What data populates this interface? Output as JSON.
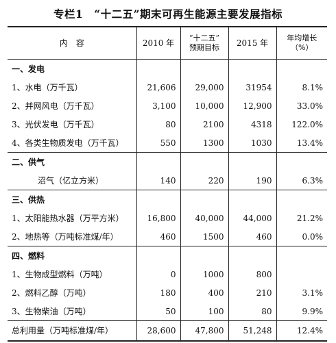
{
  "title": "专栏1　“十二五”期末可再生能源主要发展指标",
  "header": {
    "item": "内　容",
    "y2010": "2010 年",
    "target_line1": "“十二五”",
    "target_line2": "预期目标",
    "y2015": "2015 年",
    "growth_line1": "年均增长",
    "growth_line2": "（%）"
  },
  "sections": [
    {
      "heading": "一、发电",
      "rows": [
        {
          "label": "1、水电（万千瓦）",
          "y2010": "21,606",
          "target": "29,000",
          "y2015": "31954",
          "growth": "8.1%"
        },
        {
          "label": "2、并网风电（万千瓦）",
          "y2010": "3,100",
          "target": "10,000",
          "y2015": "12,900",
          "growth": "33.0%"
        },
        {
          "label": "3、光伏发电（万千瓦）",
          "y2010": "80",
          "target": "2100",
          "y2015": "4318",
          "growth": "122.0%"
        },
        {
          "label": "4、各类生物质发电（万千瓦）",
          "y2010": "550",
          "target": "1300",
          "y2015": "1030",
          "growth": "13.4%"
        }
      ]
    },
    {
      "heading": "二、供气",
      "rows": [
        {
          "label": "沼气（亿立方米）",
          "y2010": "140",
          "target": "220",
          "y2015": "190",
          "growth": "6.3%"
        }
      ]
    },
    {
      "heading": "三、供热",
      "rows": [
        {
          "label": "1、太阳能热水器（万平方米）",
          "y2010": "16,800",
          "target": "40,000",
          "y2015": "44,000",
          "growth": "21.2%"
        },
        {
          "label": "2、地热等（万吨标准煤/年）",
          "y2010": "460",
          "target": "1500",
          "y2015": "460",
          "growth": "0.0%"
        }
      ]
    },
    {
      "heading": "四、燃料",
      "rows": [
        {
          "label": "1、生物成型燃料（万吨）",
          "y2010": "0",
          "target": "1000",
          "y2015": "800",
          "growth": ""
        },
        {
          "label": "2、燃料乙醇（万吨）",
          "y2010": "180",
          "target": "400",
          "y2015": "210",
          "growth": "3.1%"
        },
        {
          "label": "3、生物柴油（万吨）",
          "y2010": "50",
          "target": "100",
          "y2015": "80",
          "growth": "9.9%"
        }
      ]
    }
  ],
  "total": {
    "label": "总利用量（万吨标准煤/年）",
    "y2010": "28,600",
    "target": "47,800",
    "y2015": "51,248",
    "growth": "12.4%"
  }
}
